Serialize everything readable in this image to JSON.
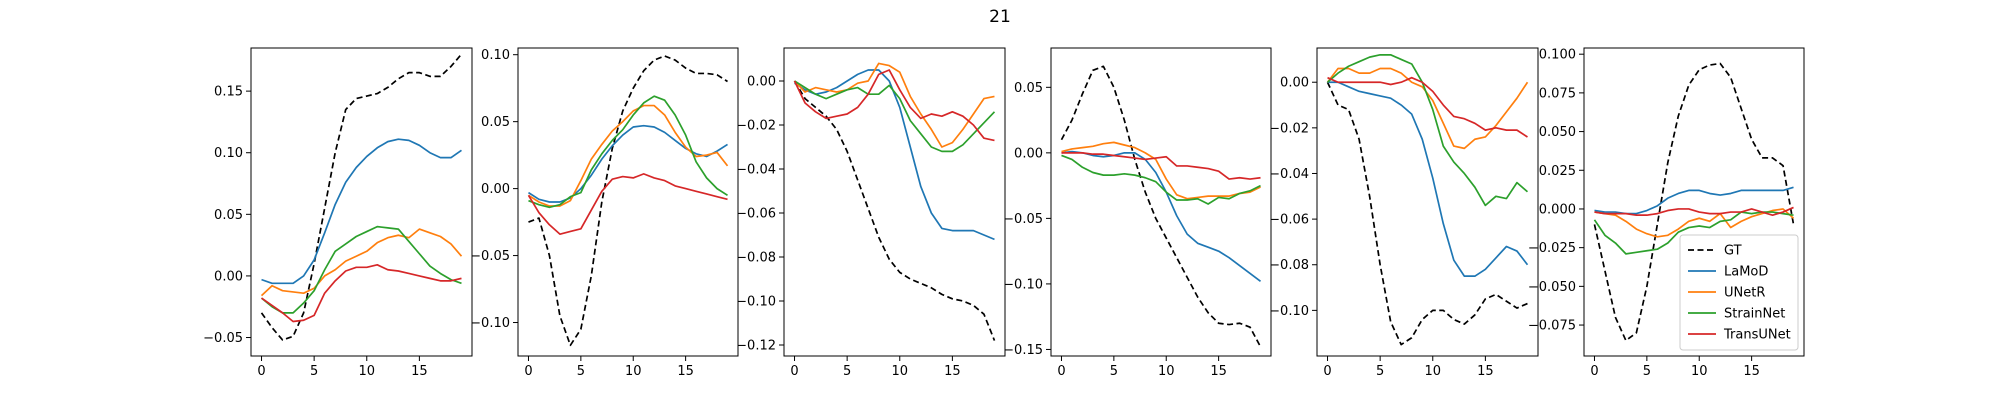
{
  "figure": {
    "title": "21"
  },
  "legend": {
    "location": "lower right of last panel",
    "entries": [
      {
        "name": "GT",
        "color": "#000000",
        "dashed": true
      },
      {
        "name": "LaMoD",
        "color": "#1f77b4",
        "dashed": false
      },
      {
        "name": "UNetR",
        "color": "#ff7f0e",
        "dashed": false
      },
      {
        "name": "StrainNet",
        "color": "#2ca02c",
        "dashed": false
      },
      {
        "name": "TransUNet",
        "color": "#d62728",
        "dashed": false
      }
    ]
  },
  "chart_data": [
    {
      "type": "line",
      "x": [
        0,
        1,
        2,
        3,
        4,
        5,
        6,
        7,
        8,
        9,
        10,
        11,
        12,
        13,
        14,
        15,
        16,
        17,
        18,
        19
      ],
      "xticks": [
        0,
        5,
        10,
        15
      ],
      "xlim": [
        -1,
        20
      ],
      "ylim": [
        -0.065,
        0.185
      ],
      "yticks": [
        -0.05,
        0.0,
        0.05,
        0.1,
        0.15
      ],
      "ytick_labels": [
        "−0.05",
        "0.00",
        "0.05",
        "0.10",
        "0.15"
      ],
      "series": [
        {
          "name": "GT",
          "values": [
            -0.03,
            -0.042,
            -0.052,
            -0.049,
            -0.03,
            0.01,
            0.055,
            0.1,
            0.135,
            0.144,
            0.146,
            0.148,
            0.153,
            0.16,
            0.165,
            0.165,
            0.162,
            0.162,
            0.17,
            0.18
          ]
        },
        {
          "name": "LaMoD",
          "values": [
            -0.003,
            -0.006,
            -0.006,
            -0.006,
            0.0,
            0.013,
            0.035,
            0.058,
            0.076,
            0.088,
            0.097,
            0.104,
            0.109,
            0.111,
            0.11,
            0.106,
            0.1,
            0.096,
            0.096,
            0.102
          ]
        },
        {
          "name": "UNetR",
          "values": [
            -0.016,
            -0.008,
            -0.012,
            -0.013,
            -0.014,
            -0.01,
            0.0,
            0.005,
            0.012,
            0.016,
            0.02,
            0.027,
            0.031,
            0.033,
            0.031,
            0.038,
            0.035,
            0.032,
            0.026,
            0.016
          ]
        },
        {
          "name": "StrainNet",
          "values": [
            -0.018,
            -0.025,
            -0.03,
            -0.03,
            -0.022,
            -0.012,
            0.005,
            0.02,
            0.026,
            0.032,
            0.036,
            0.04,
            0.039,
            0.038,
            0.028,
            0.018,
            0.008,
            0.002,
            -0.003,
            -0.006
          ]
        },
        {
          "name": "TransUNet",
          "values": [
            -0.018,
            -0.024,
            -0.03,
            -0.037,
            -0.036,
            -0.032,
            -0.014,
            -0.004,
            0.004,
            0.007,
            0.007,
            0.009,
            0.005,
            0.004,
            0.002,
            0.0,
            -0.002,
            -0.004,
            -0.004,
            -0.002
          ]
        }
      ]
    },
    {
      "type": "line",
      "x": [
        0,
        1,
        2,
        3,
        4,
        5,
        6,
        7,
        8,
        9,
        10,
        11,
        12,
        13,
        14,
        15,
        16,
        17,
        18,
        19
      ],
      "xticks": [
        0,
        5,
        10,
        15
      ],
      "xlim": [
        -1,
        20
      ],
      "ylim": [
        -0.125,
        0.105
      ],
      "yticks": [
        -0.1,
        -0.05,
        0.0,
        0.05,
        0.1
      ],
      "ytick_labels": [
        "−0.10",
        "−0.05",
        "0.00",
        "0.05",
        "0.10"
      ],
      "series": [
        {
          "name": "GT",
          "values": [
            -0.025,
            -0.022,
            -0.05,
            -0.095,
            -0.117,
            -0.105,
            -0.065,
            -0.01,
            0.03,
            0.058,
            0.075,
            0.088,
            0.096,
            0.099,
            0.096,
            0.09,
            0.086,
            0.086,
            0.085,
            0.08
          ]
        },
        {
          "name": "LaMoD",
          "values": [
            -0.003,
            -0.008,
            -0.01,
            -0.01,
            -0.007,
            0.0,
            0.01,
            0.022,
            0.032,
            0.04,
            0.046,
            0.047,
            0.046,
            0.042,
            0.036,
            0.03,
            0.026,
            0.024,
            0.028,
            0.033
          ]
        },
        {
          "name": "UNetR",
          "values": [
            -0.005,
            -0.01,
            -0.013,
            -0.013,
            -0.009,
            0.006,
            0.022,
            0.033,
            0.043,
            0.05,
            0.058,
            0.062,
            0.062,
            0.055,
            0.042,
            0.031,
            0.024,
            0.025,
            0.027,
            0.017
          ]
        },
        {
          "name": "StrainNet",
          "values": [
            -0.009,
            -0.012,
            -0.014,
            -0.012,
            -0.006,
            -0.003,
            0.014,
            0.026,
            0.036,
            0.044,
            0.055,
            0.064,
            0.069,
            0.066,
            0.055,
            0.04,
            0.02,
            0.008,
            0.0,
            -0.005
          ]
        },
        {
          "name": "TransUNet",
          "values": [
            -0.005,
            -0.018,
            -0.027,
            -0.034,
            -0.032,
            -0.03,
            -0.016,
            -0.002,
            0.007,
            0.009,
            0.008,
            0.011,
            0.008,
            0.006,
            0.002,
            0.0,
            -0.002,
            -0.004,
            -0.006,
            -0.008
          ]
        }
      ]
    },
    {
      "type": "line",
      "x": [
        0,
        1,
        2,
        3,
        4,
        5,
        6,
        7,
        8,
        9,
        10,
        11,
        12,
        13,
        14,
        15,
        16,
        17,
        18,
        19
      ],
      "xticks": [
        0,
        5,
        10,
        15
      ],
      "xlim": [
        -1,
        20
      ],
      "ylim": [
        -0.125,
        0.015
      ],
      "yticks": [
        -0.12,
        -0.1,
        -0.08,
        -0.06,
        -0.04,
        -0.02,
        0.0
      ],
      "ytick_labels": [
        "−0.12",
        "−0.10",
        "−0.08",
        "−0.06",
        "−0.04",
        "−0.02",
        "0.00"
      ],
      "series": [
        {
          "name": "GT",
          "values": [
            0.0,
            -0.008,
            -0.012,
            -0.016,
            -0.022,
            -0.032,
            -0.045,
            -0.058,
            -0.071,
            -0.081,
            -0.087,
            -0.09,
            -0.092,
            -0.094,
            -0.097,
            -0.099,
            -0.1,
            -0.102,
            -0.106,
            -0.118
          ]
        },
        {
          "name": "LaMoD",
          "values": [
            -0.001,
            -0.004,
            -0.006,
            -0.005,
            -0.003,
            0.0,
            0.003,
            0.005,
            0.005,
            0.0,
            -0.012,
            -0.03,
            -0.048,
            -0.06,
            -0.067,
            -0.068,
            -0.068,
            -0.068,
            -0.07,
            -0.072
          ]
        },
        {
          "name": "UNetR",
          "values": [
            0.0,
            -0.005,
            -0.003,
            -0.004,
            -0.005,
            -0.004,
            -0.001,
            0.0,
            0.008,
            0.007,
            0.004,
            -0.007,
            -0.015,
            -0.022,
            -0.03,
            -0.028,
            -0.022,
            -0.015,
            -0.008,
            -0.007
          ]
        },
        {
          "name": "StrainNet",
          "values": [
            0.0,
            -0.003,
            -0.006,
            -0.008,
            -0.006,
            -0.004,
            -0.003,
            -0.006,
            -0.006,
            -0.002,
            -0.008,
            -0.018,
            -0.024,
            -0.03,
            -0.032,
            -0.032,
            -0.029,
            -0.024,
            -0.019,
            -0.014
          ]
        },
        {
          "name": "TransUNet",
          "values": [
            0.0,
            -0.01,
            -0.014,
            -0.017,
            -0.016,
            -0.015,
            -0.012,
            -0.006,
            0.003,
            0.005,
            -0.004,
            -0.012,
            -0.017,
            -0.015,
            -0.016,
            -0.014,
            -0.016,
            -0.02,
            -0.026,
            -0.027
          ]
        }
      ]
    },
    {
      "type": "line",
      "x": [
        0,
        1,
        2,
        3,
        4,
        5,
        6,
        7,
        8,
        9,
        10,
        11,
        12,
        13,
        14,
        15,
        16,
        17,
        18,
        19
      ],
      "xticks": [
        0,
        5,
        10,
        15
      ],
      "xlim": [
        -1,
        20
      ],
      "ylim": [
        -0.155,
        0.08
      ],
      "yticks": [
        -0.15,
        -0.1,
        -0.05,
        0.0,
        0.05
      ],
      "ytick_labels": [
        "−0.15",
        "−0.10",
        "−0.05",
        "0.00",
        "0.05"
      ],
      "series": [
        {
          "name": "GT",
          "values": [
            0.01,
            0.025,
            0.045,
            0.063,
            0.066,
            0.05,
            0.025,
            -0.005,
            -0.03,
            -0.05,
            -0.065,
            -0.08,
            -0.095,
            -0.11,
            -0.122,
            -0.13,
            -0.131,
            -0.13,
            -0.133,
            -0.148
          ]
        },
        {
          "name": "LaMoD",
          "values": [
            0.0,
            0.001,
            0.0,
            -0.002,
            -0.003,
            -0.002,
            0.0,
            0.0,
            -0.005,
            -0.015,
            -0.03,
            -0.048,
            -0.062,
            -0.069,
            -0.072,
            -0.075,
            -0.08,
            -0.086,
            -0.092,
            -0.098
          ]
        },
        {
          "name": "UNetR",
          "values": [
            0.001,
            0.003,
            0.004,
            0.005,
            0.007,
            0.008,
            0.006,
            0.004,
            0.0,
            -0.005,
            -0.02,
            -0.032,
            -0.035,
            -0.034,
            -0.033,
            -0.033,
            -0.033,
            -0.031,
            -0.03,
            -0.026
          ]
        },
        {
          "name": "StrainNet",
          "values": [
            -0.002,
            -0.005,
            -0.011,
            -0.015,
            -0.017,
            -0.017,
            -0.016,
            -0.017,
            -0.019,
            -0.022,
            -0.03,
            -0.036,
            -0.036,
            -0.035,
            -0.039,
            -0.034,
            -0.035,
            -0.031,
            -0.029,
            -0.025
          ]
        },
        {
          "name": "TransUNet",
          "values": [
            0.0,
            0.0,
            0.0,
            -0.001,
            -0.001,
            -0.002,
            -0.003,
            -0.004,
            -0.005,
            -0.004,
            -0.003,
            -0.01,
            -0.01,
            -0.011,
            -0.012,
            -0.014,
            -0.02,
            -0.019,
            -0.02,
            -0.019
          ]
        }
      ]
    },
    {
      "type": "line",
      "x": [
        0,
        1,
        2,
        3,
        4,
        5,
        6,
        7,
        8,
        9,
        10,
        11,
        12,
        13,
        14,
        15,
        16,
        17,
        18,
        19
      ],
      "xticks": [
        0,
        5,
        10,
        15
      ],
      "xlim": [
        -1,
        20
      ],
      "ylim": [
        -0.12,
        0.015
      ],
      "yticks": [
        -0.1,
        -0.08,
        -0.06,
        -0.04,
        -0.02,
        0.0
      ],
      "ytick_labels": [
        "−0.10",
        "−0.08",
        "−0.06",
        "−0.04",
        "−0.02",
        "0.00"
      ],
      "series": [
        {
          "name": "GT",
          "values": [
            0.0,
            -0.01,
            -0.012,
            -0.025,
            -0.05,
            -0.08,
            -0.105,
            -0.115,
            -0.112,
            -0.104,
            -0.1,
            -0.1,
            -0.104,
            -0.106,
            -0.102,
            -0.095,
            -0.093,
            -0.096,
            -0.099,
            -0.097
          ]
        },
        {
          "name": "LaMoD",
          "values": [
            0.0,
            0.0,
            -0.002,
            -0.004,
            -0.005,
            -0.006,
            -0.007,
            -0.01,
            -0.014,
            -0.025,
            -0.042,
            -0.062,
            -0.078,
            -0.085,
            -0.085,
            -0.082,
            -0.077,
            -0.072,
            -0.074,
            -0.08
          ]
        },
        {
          "name": "UNetR",
          "values": [
            0.0,
            0.006,
            0.006,
            0.004,
            0.004,
            0.006,
            0.006,
            0.004,
            0.0,
            -0.002,
            -0.008,
            -0.018,
            -0.028,
            -0.029,
            -0.025,
            -0.024,
            -0.019,
            -0.013,
            -0.007,
            0.0
          ]
        },
        {
          "name": "StrainNet",
          "values": [
            0.0,
            0.004,
            0.007,
            0.009,
            0.011,
            0.012,
            0.012,
            0.01,
            0.008,
            0.0,
            -0.012,
            -0.028,
            -0.035,
            -0.04,
            -0.046,
            -0.054,
            -0.05,
            -0.051,
            -0.044,
            -0.048
          ]
        },
        {
          "name": "TransUNet",
          "values": [
            0.002,
            0.0,
            0.0,
            0.0,
            0.0,
            0.0,
            -0.001,
            0.0,
            0.002,
            0.0,
            -0.004,
            -0.01,
            -0.015,
            -0.016,
            -0.018,
            -0.021,
            -0.02,
            -0.021,
            -0.021,
            -0.024
          ]
        }
      ]
    },
    {
      "type": "line",
      "x": [
        0,
        1,
        2,
        3,
        4,
        5,
        6,
        7,
        8,
        9,
        10,
        11,
        12,
        13,
        14,
        15,
        16,
        17,
        18,
        19
      ],
      "xticks": [
        0,
        5,
        10,
        15
      ],
      "xlim": [
        -1,
        20
      ],
      "ylim": [
        -0.095,
        0.104
      ],
      "yticks": [
        -0.075,
        -0.05,
        -0.025,
        0.0,
        0.025,
        0.05,
        0.075,
        0.1
      ],
      "ytick_labels": [
        "−0.075",
        "−0.050",
        "−0.025",
        "0.000",
        "0.025",
        "0.050",
        "0.075",
        "0.100"
      ],
      "series": [
        {
          "name": "GT",
          "values": [
            -0.01,
            -0.04,
            -0.07,
            -0.085,
            -0.08,
            -0.05,
            -0.01,
            0.03,
            0.06,
            0.08,
            0.09,
            0.093,
            0.094,
            0.085,
            0.065,
            0.045,
            0.033,
            0.033,
            0.028,
            -0.01
          ]
        },
        {
          "name": "LaMoD",
          "values": [
            -0.001,
            -0.002,
            -0.002,
            -0.003,
            -0.003,
            -0.001,
            0.002,
            0.007,
            0.01,
            0.012,
            0.012,
            0.01,
            0.009,
            0.01,
            0.012,
            0.012,
            0.012,
            0.012,
            0.012,
            0.014
          ]
        },
        {
          "name": "UNetR",
          "values": [
            -0.002,
            -0.003,
            -0.004,
            -0.008,
            -0.013,
            -0.016,
            -0.018,
            -0.017,
            -0.013,
            -0.008,
            -0.006,
            -0.008,
            -0.003,
            -0.012,
            -0.008,
            -0.005,
            -0.003,
            -0.001,
            0.0,
            -0.006
          ]
        },
        {
          "name": "StrainNet",
          "values": [
            -0.007,
            -0.017,
            -0.022,
            -0.029,
            -0.028,
            -0.027,
            -0.026,
            -0.022,
            -0.015,
            -0.012,
            -0.011,
            -0.012,
            -0.008,
            -0.007,
            -0.002,
            -0.003,
            -0.002,
            -0.002,
            -0.003,
            -0.004
          ]
        },
        {
          "name": "TransUNet",
          "values": [
            -0.002,
            -0.003,
            -0.003,
            -0.003,
            -0.004,
            -0.004,
            -0.003,
            -0.001,
            0.0,
            0.0,
            -0.002,
            -0.003,
            -0.003,
            -0.002,
            -0.002,
            0.0,
            -0.002,
            -0.004,
            -0.002,
            0.001
          ]
        }
      ]
    }
  ]
}
